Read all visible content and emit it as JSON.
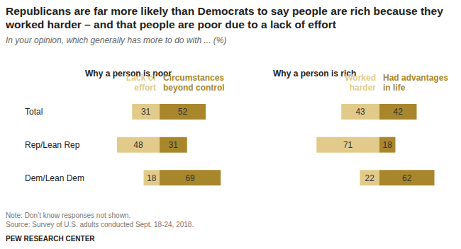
{
  "title": "Republicans are far more likely than Democrats to say people are rich because they worked harder – and that people are poor due to a lack of effort",
  "subtitle": "In your opinion, which generally has more to do with ... (%)",
  "note": "Note: Don’t know responses not shown.",
  "source": "Source: Survey of U.S. adults conducted Sept. 18-24, 2018.",
  "credit": "PEW RESEARCH CENTER",
  "chart_data": [
    {
      "type": "bar",
      "orientation": "horizontal",
      "title": "Why a person is poor",
      "categories": [
        "Total",
        "Rep/Lean Rep",
        "Dem/Lean Dem"
      ],
      "series": [
        {
          "name": "Lack of effort",
          "color": "#e2cb8a",
          "values": [
            31,
            48,
            18
          ]
        },
        {
          "name": "Circumstances beyond control",
          "color": "#a8872c",
          "values": [
            52,
            31,
            69
          ]
        }
      ],
      "xlim": [
        0,
        80
      ],
      "data_labels": true,
      "tick_labels": false
    },
    {
      "type": "bar",
      "orientation": "horizontal",
      "title": "Why a person is rich",
      "categories": [
        "Total",
        "Rep/Lean Rep",
        "Dem/Lean Dem"
      ],
      "series": [
        {
          "name": "Worked harder",
          "color": "#e2cb8a",
          "values": [
            43,
            71,
            22
          ]
        },
        {
          "name": "Had advantages in life",
          "color": "#a8872c",
          "values": [
            42,
            18,
            62
          ]
        }
      ],
      "xlim": [
        0,
        80
      ],
      "data_labels": true,
      "tick_labels": false
    }
  ]
}
